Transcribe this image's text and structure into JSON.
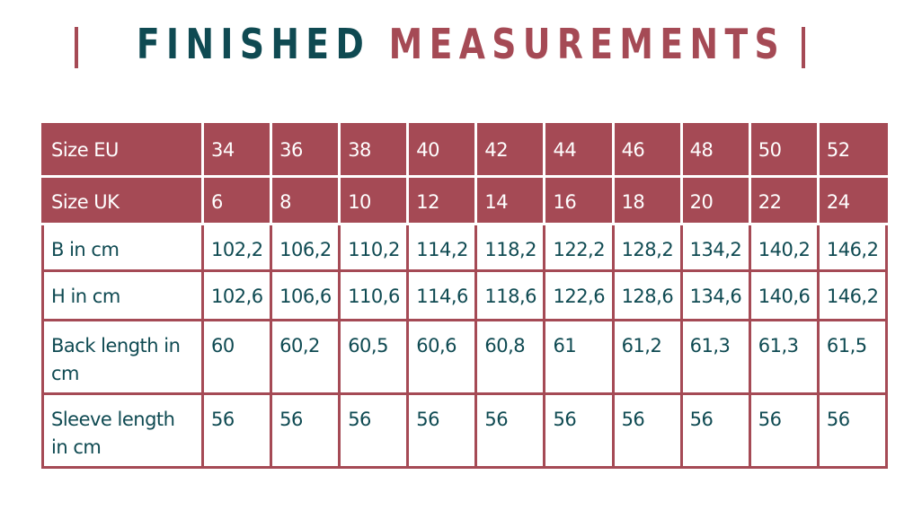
{
  "title": {
    "part1": "FINISHED",
    "part2": "MEASUREMENTS"
  },
  "colors": {
    "accent": "#a54a55",
    "text": "#0f4a52"
  },
  "rows": [
    {
      "label": "Size EU",
      "header": true,
      "values": [
        "34",
        "36",
        "38",
        "40",
        "42",
        "44",
        "46",
        "48",
        "50",
        "52"
      ]
    },
    {
      "label": "Size UK",
      "header": true,
      "values": [
        "6",
        "8",
        "10",
        "12",
        "14",
        "16",
        "18",
        "20",
        "22",
        "24"
      ]
    },
    {
      "label": "B in cm",
      "values": [
        "102,2",
        "106,2",
        "110,2",
        "114,2",
        "118,2",
        "122,2",
        "128,2",
        "134,2",
        "140,2",
        "146,2"
      ]
    },
    {
      "label": "H in cm",
      "values": [
        "102,6",
        "106,6",
        "110,6",
        "114,6",
        "118,6",
        "122,6",
        "128,6",
        "134,6",
        "140,6",
        "146,2"
      ]
    },
    {
      "label": "Back length in cm",
      "values": [
        "60",
        "60,2",
        "60,5",
        "60,6",
        "60,8",
        "61",
        "61,2",
        "61,3",
        "61,3",
        "61,5"
      ]
    },
    {
      "label": "Sleeve length in cm",
      "values": [
        "56",
        "56",
        "56",
        "56",
        "56",
        "56",
        "56",
        "56",
        "56",
        "56"
      ]
    }
  ]
}
